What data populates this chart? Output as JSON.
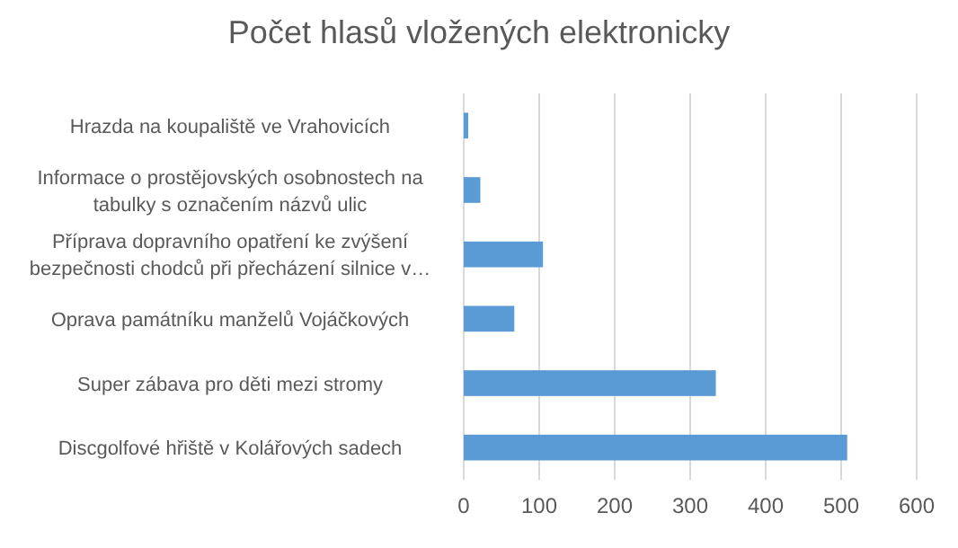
{
  "chart_data": {
    "type": "bar",
    "orientation": "horizontal",
    "title": "Počet hlasů vložených elektronicky",
    "categories": [
      "Hrazda na koupaliště ve Vrahovicích",
      "Informace o prostějovských osobnostech na tabulky s označením názvů ulic",
      "Příprava dopravního opatření ke zvýšení bezpečnosti chodců při přecházení silnice v…",
      "Oprava památníku manželů Vojáčkových",
      "Super zábava pro děti mezi stromy",
      "Discgolfové hřiště v Kolářových sadech"
    ],
    "values": [
      6,
      22,
      105,
      67,
      334,
      508
    ],
    "color": "#5b9bd5",
    "xlim": [
      0,
      600
    ],
    "xticks": [
      0,
      100,
      200,
      300,
      400,
      500,
      600
    ],
    "grid": "x"
  }
}
